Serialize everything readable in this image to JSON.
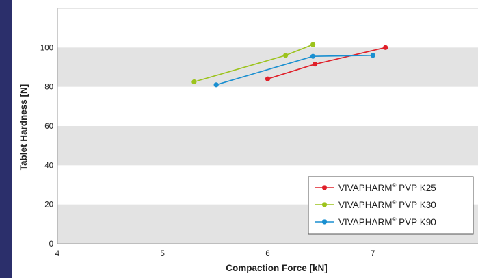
{
  "colors": {
    "accent_bar": "#2b2f6b",
    "band": "#e3e3e3",
    "axis": "#999999"
  },
  "chart_data": {
    "type": "line",
    "xlabel": "Compaction Force [kN]",
    "ylabel": "Tablet Hardness [N]",
    "xlim": [
      4,
      8
    ],
    "ylim": [
      0,
      120
    ],
    "xticks": [
      4,
      5,
      6,
      7
    ],
    "yticks": [
      0,
      20,
      40,
      60,
      80,
      100
    ],
    "shaded_bands": [
      [
        0,
        20
      ],
      [
        40,
        60
      ],
      [
        80,
        100
      ]
    ],
    "legend_position": "bottom-right",
    "series": [
      {
        "name": "VIVAPHARM",
        "name_sup": "®",
        "name_suffix": " PVP K25",
        "color": "#e0202a",
        "x": [
          6.0,
          6.45,
          7.12
        ],
        "y": [
          84,
          91.5,
          100
        ]
      },
      {
        "name": "VIVAPHARM",
        "name_sup": "®",
        "name_suffix": " PVP K30",
        "color": "#9cc31c",
        "x": [
          5.3,
          6.17,
          6.43
        ],
        "y": [
          82.5,
          96,
          101.5
        ]
      },
      {
        "name": "VIVAPHARM",
        "name_sup": "®",
        "name_suffix": " PVP K90",
        "color": "#1a8fd0",
        "x": [
          5.51,
          6.43,
          7.0
        ],
        "y": [
          81,
          95.5,
          96
        ]
      }
    ]
  }
}
